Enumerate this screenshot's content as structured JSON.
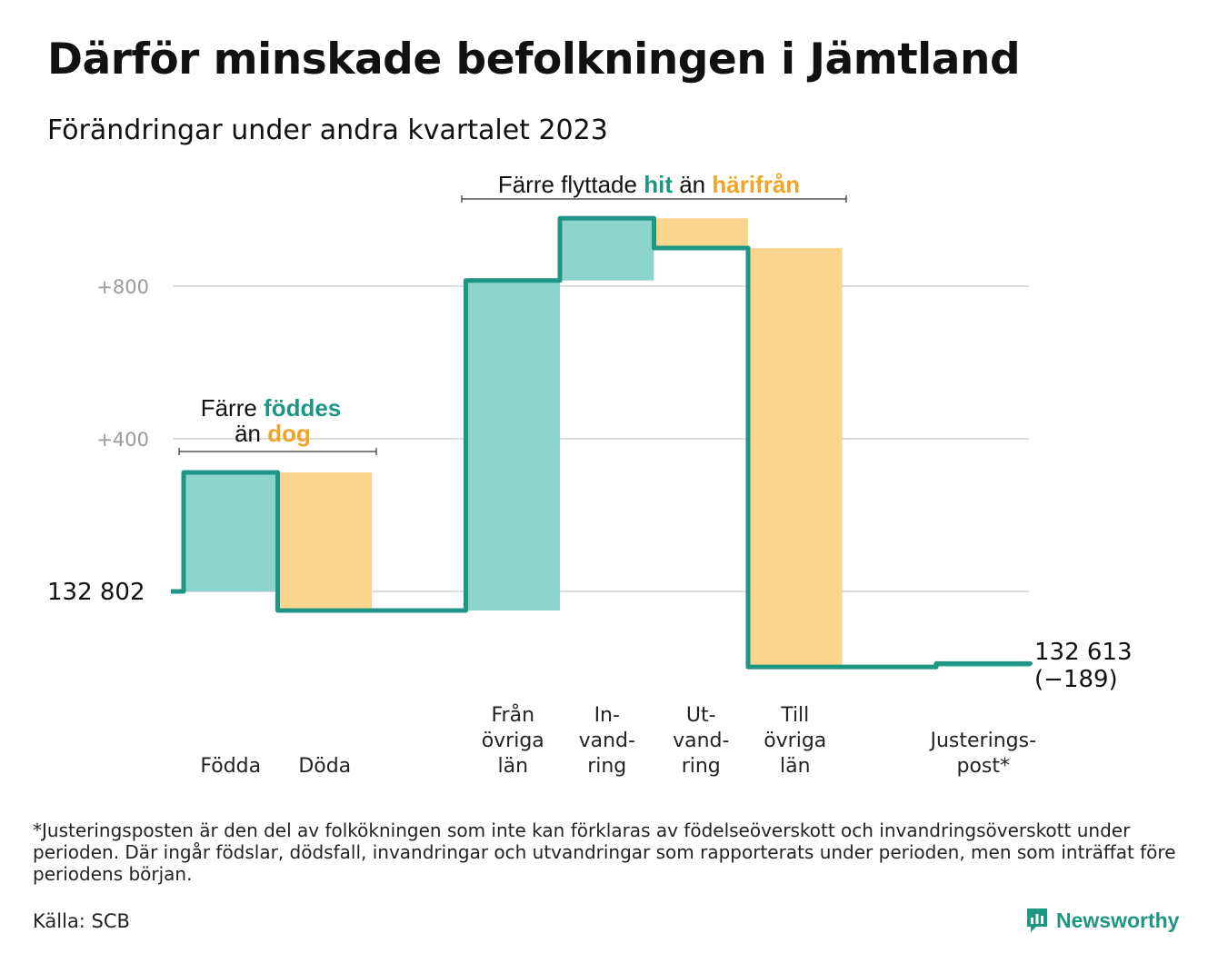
{
  "chart_data": {
    "type": "waterfall",
    "title": "Därför minskade befolkningen i Jämtland",
    "subtitle": "Förändringar under andra kvartalet 2023",
    "start_value": 132802,
    "start_label": "132   802",
    "end_value": 132613,
    "end_label": "132 613",
    "end_change_label": "(−189)",
    "y_ticks": [
      {
        "value": 400,
        "label": "+400"
      },
      {
        "value": 800,
        "label": "+800"
      }
    ],
    "ylim": [
      -220,
      1010
    ],
    "grid": true,
    "categories": [
      {
        "label_lines": [
          "Födda"
        ],
        "value": 312,
        "kind": "positive"
      },
      {
        "label_lines": [
          "Döda"
        ],
        "value": -362,
        "kind": "negative"
      },
      {
        "label_lines": [
          "",
          "",
          ""
        ],
        "value": 0,
        "kind": "spacer"
      },
      {
        "label_lines": [
          "Från",
          "övriga",
          "län"
        ],
        "value": 865,
        "kind": "positive"
      },
      {
        "label_lines": [
          "In-",
          "vand-",
          "ring"
        ],
        "value": 163,
        "kind": "positive"
      },
      {
        "label_lines": [
          "Ut-",
          "vand-",
          "ring"
        ],
        "value": -78,
        "kind": "negative"
      },
      {
        "label_lines": [
          "Till",
          "övriga",
          "län"
        ],
        "value": -1098,
        "kind": "negative"
      },
      {
        "label_lines": [
          "",
          "",
          ""
        ],
        "value": 0,
        "kind": "spacer"
      },
      {
        "label_lines": [
          "Justerings-",
          "post*"
        ],
        "value": 9,
        "kind": "positive"
      }
    ],
    "annotations": [
      {
        "line1": [
          "Färre ",
          "föddes"
        ],
        "line2": [
          "än ",
          "dog"
        ]
      },
      {
        "line1": [
          "Färre flyttade ",
          "hit",
          " än ",
          "härifrån"
        ]
      }
    ]
  },
  "colors": {
    "positive_fill": "#8dd5cc",
    "negative_fill": "#fad58e",
    "line": "#1f9583",
    "highlight_positive": "#1f9583",
    "highlight_negative": "#f1a428",
    "grid": "#dddddd"
  },
  "footnote": "*Justeringsposten är den del av folkökningen som inte kan förklaras av födelseöverskott och invandringsöverskott under perioden. Där ingår födslar, dödsfall, invandringar och utvandringar som rapporterats under perioden, men som inträffat före periodens början.",
  "source": "Källa: SCB",
  "brand": {
    "name": "Newsworthy",
    "icon": "bar-chart-bubble-icon"
  }
}
